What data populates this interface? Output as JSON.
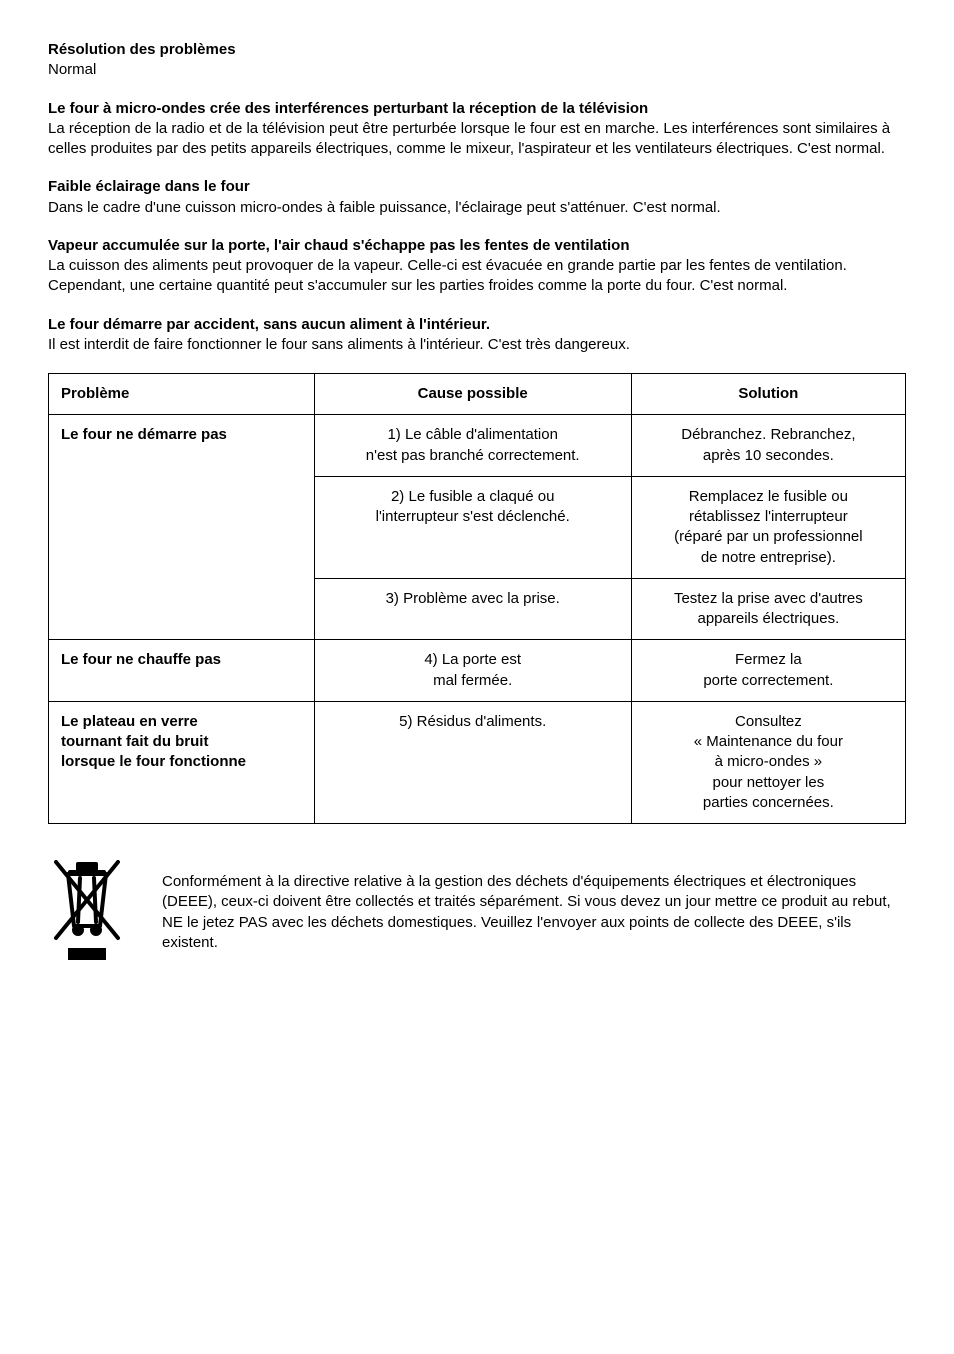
{
  "sections": [
    {
      "heading": "Résolution des problèmes",
      "body": "Normal"
    },
    {
      "heading": "Le four à micro-ondes crée des interférences perturbant la réception de la télévision",
      "body": "La réception de la radio et de la télévision peut être perturbée lorsque le four est en marche. Les interférences sont similaires à celles produites par des petits appareils électriques, comme le mixeur, l'aspirateur et les ventilateurs électriques. C'est normal."
    },
    {
      "heading": "Faible éclairage dans le four",
      "body": "Dans le cadre d'une cuisson micro-ondes à faible puissance, l'éclairage peut s'atténuer. C'est normal."
    },
    {
      "heading": "Vapeur accumulée sur la porte, l'air chaud s'échappe pas les fentes de ventilation",
      "body": "La cuisson des aliments peut provoquer de la vapeur. Celle-ci est évacuée en grande partie par les fentes de ventilation. Cependant, une certaine quantité peut s'accumuler sur les parties froides comme la porte du four. C'est normal."
    },
    {
      "heading": "Le four démarre par accident, sans aucun aliment à l'intérieur.",
      "body": "Il est interdit de faire fonctionner le four sans aliments à l'intérieur. C'est très dangereux."
    }
  ],
  "table": {
    "columns": [
      "Problème",
      "Cause possible",
      "Solution"
    ],
    "rows": [
      {
        "problem": "Le four ne démarre pas",
        "causes": [
          {
            "cause": "1) Le câble d'alimentation\nn'est pas branché correctement.",
            "solution": "Débranchez. Rebranchez,\naprès 10 secondes."
          },
          {
            "cause": "2) Le fusible a claqué ou\nl'interrupteur s'est déclenché.",
            "solution": "Remplacez le fusible ou\nrétablissez l'interrupteur\n(réparé par un professionnel\nde notre entreprise)."
          },
          {
            "cause": "3) Problème avec la prise.",
            "solution": "Testez la prise avec d'autres\nappareils électriques."
          }
        ]
      },
      {
        "problem": "Le four ne chauffe pas",
        "causes": [
          {
            "cause": "4) La porte est\nmal fermée.",
            "solution": "Fermez la\nporte correctement."
          }
        ]
      },
      {
        "problem": "Le plateau en verre\ntournant fait du bruit\nlorsque le four fonctionne",
        "causes": [
          {
            "cause": "5) Résidus d'aliments.",
            "solution": "Consultez\n« Maintenance du four\nà micro-ondes »\npour nettoyer les\nparties concernées."
          }
        ]
      }
    ]
  },
  "footer_text": "Conformément à la directive relative à la gestion des déchets d'équipements électriques et électroniques (DEEE), ceux-ci doivent être collectés et traités séparément. Si vous devez un jour mettre ce produit au rebut, NE le jetez PAS avec les déchets domestiques. Veuillez l'envoyer aux points de collecte des DEEE, s'ils existent."
}
